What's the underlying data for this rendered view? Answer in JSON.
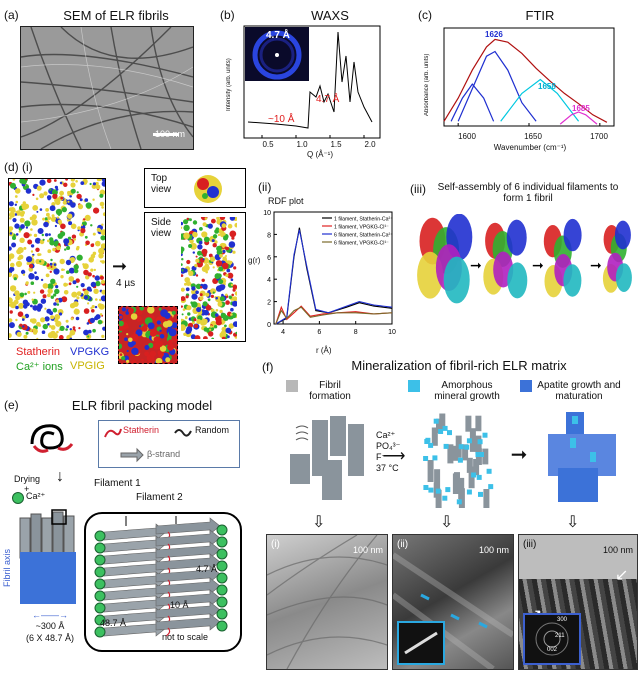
{
  "panel_a": {
    "label": "(a)",
    "title": "SEM of ELR fibrils",
    "scale": "100 nm"
  },
  "panel_b": {
    "label": "(b)",
    "title": "WAXS",
    "inset_value": "4.7 Å",
    "peak1": "4.7 Å",
    "peak2": "~10 Å",
    "ylabel": "Intensity (arb. units)",
    "xlabel": "Q (Å⁻¹)",
    "xticks": [
      "0.5",
      "1.0",
      "1.5",
      "2.0"
    ]
  },
  "panel_c": {
    "label": "(c)",
    "title": "FTIR",
    "ylabel": "Absorbance (arb. units)",
    "xlabel": "Wavenumber (cm⁻¹)",
    "xticks": [
      "1600",
      "1650",
      "1700"
    ],
    "peaks": [
      "1626",
      "1658",
      "1685"
    ]
  },
  "panel_d": {
    "label": "(d)",
    "sub_i": "(i)",
    "sub_ii": "(ii)",
    "sub_iii": "(iii)",
    "time": "4 µs",
    "top_view": "Top view",
    "side_view": "Side view",
    "legend": {
      "statherin": "Statherin",
      "vpgkg": "VPGKG",
      "ca": "Ca²⁺ ions",
      "vpgig": "VPGIG"
    },
    "rdf_title": "RDF plot",
    "rdf_ylabel": "g(r)",
    "rdf_xlabel": "r (Å)",
    "rdf_yticks": [
      "0",
      "2",
      "4",
      "6",
      "8",
      "10"
    ],
    "rdf_xticks": [
      "4",
      "6",
      "8",
      "10"
    ],
    "rdf_legend": [
      "1 filament, Statherin-Ca²⁺",
      "1 filament, VPGKG-Cl¹⁻",
      "6 filament, Statherin-Ca²⁺",
      "6 filament, VPGKG-Cl¹⁻"
    ],
    "assembly_title": "Self-assembly of 6 individual filaments to form 1 fibril"
  },
  "panel_e": {
    "label": "(e)",
    "title": "ELR fibril packing model",
    "legend": {
      "statherin": "Statherin",
      "random": "Random",
      "strand": "β-strand"
    },
    "drying": "Drying",
    "plus": "+",
    "ca": "Ca²⁺",
    "filament1": "Filament 1",
    "filament2": "Filament 2",
    "d1": "4.7 Å",
    "d2": "10 Å",
    "d3": "48.7 Å",
    "note": "not to scale",
    "axis": "Fibril axis",
    "width": "~300 Å",
    "width2": "(6 X 48.7 Å)"
  },
  "panel_f": {
    "label": "(f)",
    "title": "Mineralization of fibril-rich ELR matrix",
    "stage1": "Fibril formation",
    "stage2": "Amorphous mineral growth",
    "stage3": "Apatite growth and maturation",
    "conditions": [
      "Ca²⁺",
      "PO₄³⁻",
      "F⁻",
      "37 °C"
    ],
    "sub": [
      "(i)",
      "(ii)",
      "(iii)"
    ],
    "scale": "100 nm",
    "diff": [
      "300",
      "211",
      "002"
    ]
  },
  "chart_data": [
    {
      "type": "line",
      "title": "RDF plot",
      "xlabel": "r (Å)",
      "ylabel": "g(r)",
      "xlim": [
        3.5,
        10
      ],
      "ylim": [
        0,
        10
      ],
      "series": [
        {
          "name": "1 filament, Statherin-Ca²⁺",
          "color": "#000000",
          "x": [
            3.6,
            4.2,
            4.6,
            4.9,
            5.3,
            5.8,
            6.5,
            7.5,
            8.2,
            9,
            10
          ],
          "y": [
            0,
            0.5,
            6,
            8.6,
            5,
            1.2,
            1,
            1.5,
            1.9,
            1.6,
            1.4
          ]
        },
        {
          "name": "1 filament, VPGKG-Cl¹⁻",
          "color": "#e02020",
          "x": [
            3.6,
            3.9,
            4.2,
            4.6,
            5,
            5.5,
            6.2,
            7,
            8,
            9,
            10
          ],
          "y": [
            0,
            1.5,
            0.4,
            1,
            1.6,
            0.7,
            0.9,
            1,
            1.1,
            0.9,
            1
          ]
        },
        {
          "name": "6 filament, Statherin-Ca²⁺",
          "color": "#1f2fd0",
          "x": [
            3.6,
            4.2,
            4.6,
            4.9,
            5.3,
            5.8,
            6.5,
            7.5,
            8.2,
            9,
            10
          ],
          "y": [
            0,
            0.6,
            6.2,
            8.4,
            5.2,
            1.3,
            1,
            1.6,
            2,
            1.7,
            1.5
          ]
        },
        {
          "name": "6 filament, VPGKG-Cl¹⁻",
          "color": "#7a6a2a",
          "x": [
            3.6,
            3.9,
            4.2,
            4.6,
            5,
            5.5,
            6.2,
            7,
            8,
            9,
            10
          ],
          "y": [
            0,
            1.2,
            0.5,
            1.2,
            1.5,
            0.6,
            0.8,
            1,
            1,
            0.9,
            1
          ]
        }
      ]
    },
    {
      "type": "line",
      "title": "FTIR",
      "xlabel": "Wavenumber (cm⁻¹)",
      "ylabel": "Absorbance (arb. units)",
      "xlim": [
        1590,
        1710
      ],
      "series": [
        {
          "color": "#b01010",
          "x": [
            1590,
            1600,
            1610,
            1620,
            1626,
            1635,
            1645,
            1655,
            1665,
            1675,
            1685,
            1695,
            1705
          ],
          "y": [
            0.05,
            0.3,
            0.6,
            0.85,
            0.93,
            0.9,
            0.78,
            0.62,
            0.48,
            0.35,
            0.24,
            0.12,
            0.04
          ]
        },
        {
          "color": "#1f2fd0",
          "x": [
            1600,
            1610,
            1620,
            1626,
            1635,
            1645,
            1655
          ],
          "y": [
            0.05,
            0.4,
            0.75,
            0.8,
            0.6,
            0.25,
            0.05
          ]
        },
        {
          "color": "#00c8e0",
          "x": [
            1630,
            1645,
            1658,
            1670,
            1685
          ],
          "y": [
            0.05,
            0.35,
            0.5,
            0.35,
            0.05
          ]
        },
        {
          "color": "#e030d0",
          "x": [
            1672,
            1680,
            1685,
            1690,
            1698
          ],
          "y": [
            0.02,
            0.12,
            0.15,
            0.12,
            0.02
          ]
        },
        {
          "color": "#1f2fd0",
          "x": [
            1595,
            1603,
            1610,
            1618,
            1625
          ],
          "y": [
            0.05,
            0.3,
            0.45,
            0.3,
            0.05
          ]
        }
      ]
    }
  ]
}
